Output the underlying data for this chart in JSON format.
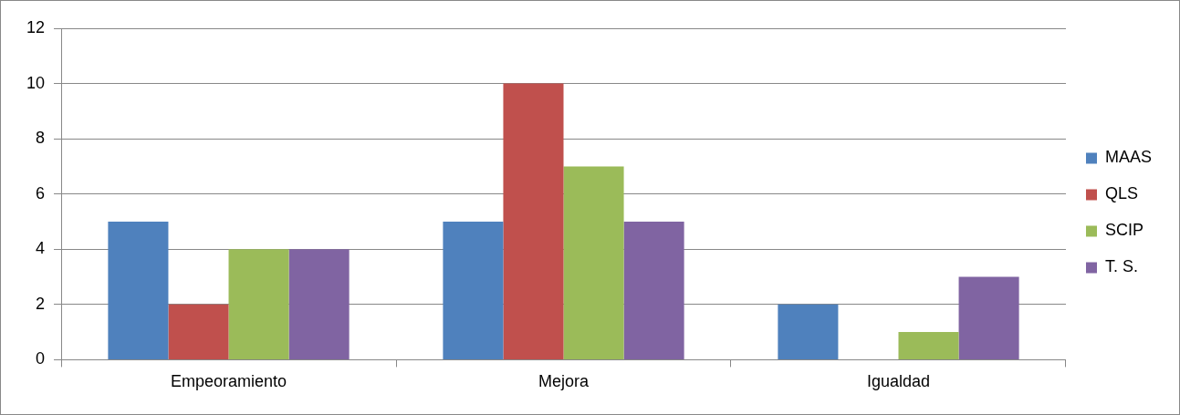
{
  "chart_data": {
    "type": "bar",
    "categories": [
      "Empeoramiento",
      "Mejora",
      "Igualdad"
    ],
    "series": [
      {
        "name": "MAAS",
        "color": "#4f81bd",
        "values": [
          5,
          5,
          2
        ]
      },
      {
        "name": "QLS",
        "color": "#c0504d",
        "values": [
          2,
          10,
          0
        ]
      },
      {
        "name": "SCIP",
        "color": "#9bbb59",
        "values": [
          4,
          7,
          1
        ]
      },
      {
        "name": "T. S.",
        "color": "#8064a2",
        "values": [
          4,
          5,
          3
        ]
      }
    ],
    "ylim": [
      0,
      12
    ],
    "yticks": [
      0,
      2,
      4,
      6,
      8,
      10,
      12
    ],
    "grid": "y",
    "legend": "right"
  }
}
